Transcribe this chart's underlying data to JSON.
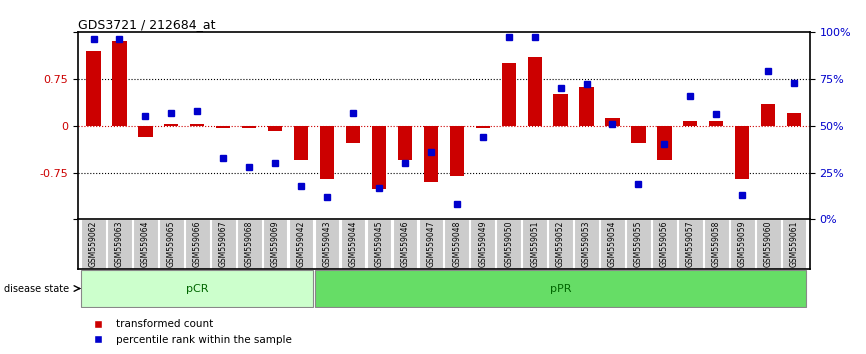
{
  "title": "GDS3721 / 212684_at",
  "samples": [
    "GSM559062",
    "GSM559063",
    "GSM559064",
    "GSM559065",
    "GSM559066",
    "GSM559067",
    "GSM559068",
    "GSM559069",
    "GSM559042",
    "GSM559043",
    "GSM559044",
    "GSM559045",
    "GSM559046",
    "GSM559047",
    "GSM559048",
    "GSM559049",
    "GSM559050",
    "GSM559051",
    "GSM559052",
    "GSM559053",
    "GSM559054",
    "GSM559055",
    "GSM559056",
    "GSM559057",
    "GSM559058",
    "GSM559059",
    "GSM559060",
    "GSM559061"
  ],
  "transformed_count": [
    1.2,
    1.35,
    -0.18,
    0.03,
    0.03,
    -0.03,
    -0.03,
    -0.08,
    -0.55,
    -0.85,
    -0.28,
    -1.02,
    -0.55,
    -0.9,
    -0.8,
    -0.03,
    1.0,
    1.1,
    0.5,
    0.62,
    0.12,
    -0.28,
    -0.55,
    0.08,
    0.08,
    -0.85,
    0.35,
    0.2
  ],
  "percentile_rank": [
    96,
    96,
    55,
    57,
    58,
    33,
    28,
    30,
    18,
    12,
    57,
    17,
    30,
    36,
    8,
    44,
    97,
    97,
    70,
    72,
    51,
    19,
    40,
    66,
    56,
    13,
    79,
    73
  ],
  "pCR_count": 9,
  "pPR_count": 19,
  "ylim_left": [
    -1.5,
    1.5
  ],
  "ylim_right": [
    0,
    100
  ],
  "yticks_left": [
    -1.5,
    -0.75,
    0,
    0.75,
    1.5
  ],
  "yticks_right": [
    0,
    25,
    50,
    75,
    100
  ],
  "bar_color": "#cc0000",
  "dot_color": "#0000cc",
  "zero_line_color": "#cc0000",
  "grid_line_color": "#000000",
  "pCR_color": "#ccffcc",
  "pPR_color": "#66dd66",
  "tick_label_color_left": "#cc0000",
  "tick_label_color_right": "#0000cc",
  "label_area_bg": "#cccccc",
  "figsize": [
    8.66,
    3.54
  ],
  "dpi": 100
}
